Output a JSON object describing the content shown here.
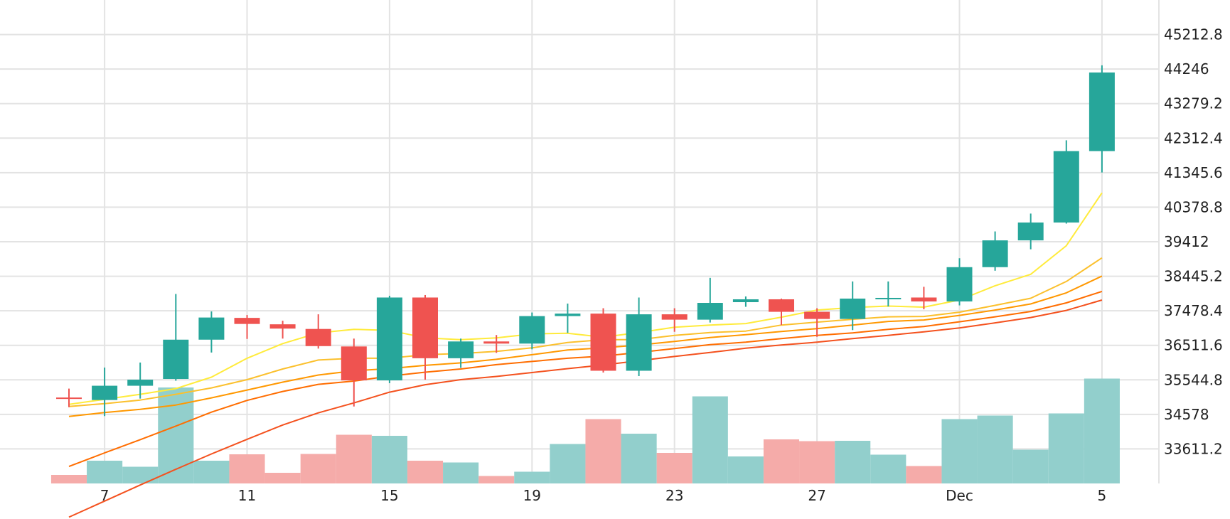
{
  "chart_data": {
    "type": "candlestick",
    "title": "",
    "xlabel": "",
    "ylabel": "",
    "ylim": [
      32644.4,
      46179.6
    ],
    "grid": true,
    "legend": "none",
    "x_ticks": [
      {
        "label": "7",
        "index": 1
      },
      {
        "label": "11",
        "index": 5
      },
      {
        "label": "15",
        "index": 9
      },
      {
        "label": "19",
        "index": 13
      },
      {
        "label": "23",
        "index": 17
      },
      {
        "label": "27",
        "index": 21
      },
      {
        "label": "Dec",
        "index": 25
      },
      {
        "label": "5",
        "index": 29
      }
    ],
    "y_ticks": [
      "45212.8",
      "44246",
      "43279.2",
      "42312.4",
      "41345.6",
      "40378.8",
      "39412",
      "38445.2",
      "37478.4",
      "36511.6",
      "35544.8",
      "34578",
      "33611.2"
    ],
    "colors": {
      "up": "#26a69a",
      "down": "#ef5350",
      "volume_up": "#92cfcc",
      "volume_down": "#f5aba9",
      "grid": "#e3e3e3"
    },
    "candles": [
      {
        "date": "Nov 6",
        "open": 35050,
        "high": 35300,
        "low": 34780,
        "close": 35030
      },
      {
        "date": "Nov 7",
        "open": 34980,
        "high": 35890,
        "low": 34530,
        "close": 35380
      },
      {
        "date": "Nov 8",
        "open": 35380,
        "high": 36030,
        "low": 35020,
        "close": 35550
      },
      {
        "date": "Nov 9",
        "open": 35570,
        "high": 37950,
        "low": 35520,
        "close": 36670
      },
      {
        "date": "Nov 10",
        "open": 36670,
        "high": 37460,
        "low": 36310,
        "close": 37290
      },
      {
        "date": "Nov 11",
        "open": 37280,
        "high": 37360,
        "low": 36690,
        "close": 37110
      },
      {
        "date": "Nov 12",
        "open": 37100,
        "high": 37200,
        "low": 36700,
        "close": 36980
      },
      {
        "date": "Nov 13",
        "open": 36970,
        "high": 37380,
        "low": 36420,
        "close": 36490
      },
      {
        "date": "Nov 14",
        "open": 36480,
        "high": 36700,
        "low": 34800,
        "close": 35530
      },
      {
        "date": "Nov 15",
        "open": 35530,
        "high": 37900,
        "low": 35450,
        "close": 37850
      },
      {
        "date": "Nov 16",
        "open": 37850,
        "high": 37920,
        "low": 35550,
        "close": 36150
      },
      {
        "date": "Nov 17",
        "open": 36150,
        "high": 36700,
        "low": 35880,
        "close": 36620
      },
      {
        "date": "Nov 18",
        "open": 36620,
        "high": 36800,
        "low": 36300,
        "close": 36560
      },
      {
        "date": "Nov 19",
        "open": 36560,
        "high": 37430,
        "low": 36400,
        "close": 37330
      },
      {
        "date": "Nov 20",
        "open": 37330,
        "high": 37680,
        "low": 36860,
        "close": 37400
      },
      {
        "date": "Nov 21",
        "open": 37400,
        "high": 37550,
        "low": 35750,
        "close": 35800
      },
      {
        "date": "Nov 22",
        "open": 35800,
        "high": 37850,
        "low": 35650,
        "close": 37380
      },
      {
        "date": "Nov 23",
        "open": 37380,
        "high": 37550,
        "low": 36890,
        "close": 37230
      },
      {
        "date": "Nov 24",
        "open": 37230,
        "high": 38400,
        "low": 37150,
        "close": 37700
      },
      {
        "date": "Nov 25",
        "open": 37720,
        "high": 37880,
        "low": 37590,
        "close": 37800
      },
      {
        "date": "Nov 26",
        "open": 37800,
        "high": 37820,
        "low": 37080,
        "close": 37450
      },
      {
        "date": "Nov 27",
        "open": 37450,
        "high": 37550,
        "low": 36750,
        "close": 37250
      },
      {
        "date": "Nov 28",
        "open": 37250,
        "high": 38300,
        "low": 36940,
        "close": 37820
      },
      {
        "date": "Nov 29",
        "open": 37820,
        "high": 38300,
        "low": 37600,
        "close": 37840
      },
      {
        "date": "Nov 30",
        "open": 37850,
        "high": 38150,
        "low": 37520,
        "close": 37740
      },
      {
        "date": "Dec 1",
        "open": 37740,
        "high": 38950,
        "low": 37630,
        "close": 38700
      },
      {
        "date": "Dec 2",
        "open": 38700,
        "high": 39700,
        "low": 38600,
        "close": 39450
      },
      {
        "date": "Dec 3",
        "open": 39450,
        "high": 40200,
        "low": 39200,
        "close": 39950
      },
      {
        "date": "Dec 4",
        "open": 39950,
        "high": 42250,
        "low": 39920,
        "close": 41950
      },
      {
        "date": "Dec 5",
        "open": 41950,
        "high": 44350,
        "low": 41350,
        "close": 44150
      }
    ],
    "volume_ylim": [
      0,
      30000
    ],
    "volumes": [
      2400,
      6400,
      4700,
      27000,
      6400,
      8200,
      3000,
      8300,
      13700,
      13400,
      6400,
      5900,
      2100,
      3300,
      11100,
      18100,
      14000,
      8600,
      24500,
      7600,
      12400,
      11900,
      12000,
      8100,
      4900,
      18100,
      19100,
      9500,
      19700,
      29500
    ],
    "moving_averages": [
      {
        "color": "#ffeb3b",
        "width": 2,
        "values": [
          34860,
          35000,
          35140,
          35300,
          35620,
          36150,
          36560,
          36860,
          36960,
          36930,
          36720,
          36670,
          36720,
          36830,
          36850,
          36740,
          36870,
          37020,
          37080,
          37120,
          37300,
          37500,
          37570,
          37610,
          37580,
          37780,
          38180,
          38500,
          39300,
          40780
        ]
      },
      {
        "color": "#fbc02d",
        "width": 2,
        "values": [
          34800,
          34880,
          34980,
          35140,
          35320,
          35550,
          35850,
          36100,
          36150,
          36150,
          36250,
          36280,
          36340,
          36440,
          36590,
          36670,
          36670,
          36790,
          36870,
          36910,
          37080,
          37160,
          37240,
          37310,
          37320,
          37440,
          37630,
          37830,
          38300,
          38960
        ]
      },
      {
        "color": "#ff9800",
        "width": 2,
        "values": [
          34520,
          34630,
          34720,
          34840,
          35040,
          35260,
          35480,
          35680,
          35800,
          35860,
          35950,
          36020,
          36120,
          36250,
          36380,
          36440,
          36520,
          36620,
          36730,
          36810,
          36900,
          36980,
          37080,
          37180,
          37220,
          37350,
          37500,
          37670,
          37980,
          38450
        ]
      },
      {
        "color": "#ff6d00",
        "width": 2,
        "values": [
          33120,
          33500,
          33870,
          34250,
          34640,
          34970,
          35220,
          35420,
          35510,
          35650,
          35760,
          35850,
          35970,
          36060,
          36150,
          36210,
          36310,
          36420,
          36530,
          36600,
          36700,
          36790,
          36860,
          36960,
          37040,
          37170,
          37310,
          37460,
          37700,
          38020
        ]
      },
      {
        "color": "#f4511e",
        "width": 2,
        "values": [
          31700,
          32150,
          32600,
          33040,
          33470,
          33880,
          34280,
          34620,
          34900,
          35200,
          35410,
          35550,
          35640,
          35750,
          35860,
          35960,
          36080,
          36200,
          36310,
          36430,
          36520,
          36600,
          36700,
          36790,
          36890,
          37000,
          37140,
          37290,
          37490,
          37780
        ]
      }
    ]
  }
}
